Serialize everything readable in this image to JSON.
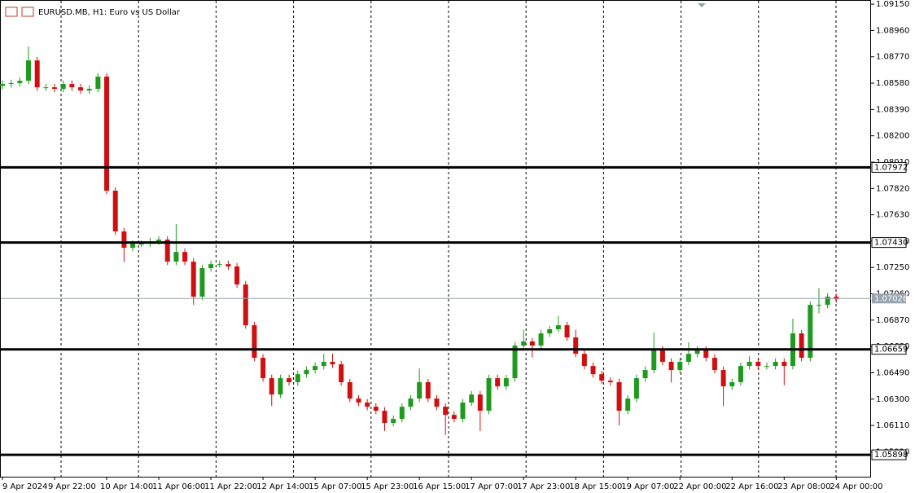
{
  "chart_data": {
    "type": "candlestick",
    "title": "EURUSD.MB, H1:  Euro vs US Dollar",
    "categories": [
      "9 Apr 2024",
      null,
      null,
      null,
      null,
      null,
      "9 Apr 22:00",
      null,
      null,
      null,
      null,
      null,
      "10 Apr 14:00",
      null,
      null,
      null,
      null,
      null,
      "11 Apr 06:00",
      null,
      null,
      null,
      null,
      null,
      "11 Apr 22:00",
      null,
      null,
      null,
      null,
      null,
      "12 Apr 14:00",
      null,
      null,
      null,
      null,
      null,
      "15 Apr 07:00",
      null,
      null,
      null,
      null,
      null,
      "15 Apr 23:00",
      null,
      null,
      null,
      null,
      null,
      "16 Apr 15:00",
      null,
      null,
      null,
      null,
      null,
      "17 Apr 07:00",
      null,
      null,
      null,
      null,
      null,
      "17 Apr 23:00",
      null,
      null,
      null,
      null,
      null,
      "18 Apr 15:00",
      null,
      null,
      null,
      null,
      null,
      "19 Apr 07:00",
      null,
      null,
      null,
      null,
      null,
      "22 Apr 00:00",
      null,
      null,
      null,
      null,
      null,
      "22 Apr 16:00",
      null,
      null,
      null,
      null,
      null,
      "23 Apr 08:00",
      null,
      null,
      null,
      null,
      null,
      "24 Apr 00:00"
    ],
    "open": [
      1.0856,
      1.08574,
      1.0858,
      1.08597,
      1.08744,
      1.0855,
      1.0855,
      1.08539,
      1.08574,
      1.0855,
      1.08527,
      1.08539,
      1.08627,
      1.07804,
      1.0751,
      1.07392,
      1.07421,
      1.07421,
      1.07439,
      1.07451,
      1.07292,
      1.07362,
      1.07292,
      1.07039,
      1.07245,
      1.07274,
      1.07274,
      1.07257,
      1.07127,
      1.06833,
      1.06598,
      1.06451,
      1.06333,
      1.06451,
      1.06422,
      1.0648,
      1.0651,
      1.06539,
      1.06569,
      1.06551,
      1.06422,
      1.06304,
      1.06275,
      1.06245,
      1.06216,
      1.06128,
      1.06157,
      1.06245,
      1.06304,
      1.06422,
      1.06304,
      1.06245,
      1.06186,
      1.06157,
      1.06275,
      1.06333,
      1.06216,
      1.06451,
      1.06392,
      1.06451,
      1.06686,
      1.06716,
      1.06686,
      1.06774,
      1.06804,
      1.06833,
      1.06745,
      1.06627,
      1.06539,
      1.0648,
      1.06433,
      1.06422,
      1.06216,
      1.06304,
      1.06451,
      1.0651,
      1.06657,
      1.06569,
      1.0651,
      1.06569,
      1.06627,
      1.06657,
      1.06598,
      1.0651,
      1.06392,
      1.06422,
      1.06539,
      1.06569,
      1.06539,
      1.06539,
      1.06569,
      1.06539,
      1.06774,
      1.06598,
      1.0698,
      1.0698,
      1.07039
    ],
    "high": [
      1.08599,
      1.08605,
      1.08622,
      1.08844,
      1.08769,
      1.08575,
      1.08575,
      1.08599,
      1.08599,
      1.08575,
      1.08564,
      1.08652,
      1.08652,
      1.07829,
      1.07535,
      1.07446,
      1.07446,
      1.07464,
      1.07476,
      1.07476,
      1.07563,
      1.07387,
      1.07317,
      1.0727,
      1.07299,
      1.07299,
      1.07299,
      1.07282,
      1.07152,
      1.06858,
      1.06623,
      1.06476,
      1.06476,
      1.06476,
      1.06505,
      1.06535,
      1.06564,
      1.06627,
      1.06627,
      1.06576,
      1.06447,
      1.06329,
      1.063,
      1.0627,
      1.06241,
      1.06182,
      1.0627,
      1.06329,
      1.0652,
      1.06447,
      1.06329,
      1.0627,
      1.06211,
      1.063,
      1.06358,
      1.06358,
      1.06476,
      1.06476,
      1.06476,
      1.06711,
      1.068,
      1.06741,
      1.06799,
      1.06829,
      1.069,
      1.06858,
      1.068,
      1.06652,
      1.06564,
      1.06505,
      1.06458,
      1.06447,
      1.06329,
      1.06476,
      1.06535,
      1.0678,
      1.06682,
      1.06594,
      1.06594,
      1.0671,
      1.06682,
      1.06682,
      1.06623,
      1.06535,
      1.06447,
      1.06564,
      1.0661,
      1.06594,
      1.06564,
      1.06594,
      1.06594,
      1.0688,
      1.06799,
      1.07005,
      1.071,
      1.07064,
      1.0706
    ],
    "low": [
      1.08535,
      1.08549,
      1.08555,
      1.08572,
      1.08525,
      1.08525,
      1.08514,
      1.08514,
      1.08525,
      1.08502,
      1.08502,
      1.08514,
      1.07779,
      1.07485,
      1.0729,
      1.07367,
      1.07396,
      1.07396,
      1.07414,
      1.07267,
      1.07267,
      1.07267,
      1.0698,
      1.07014,
      1.0722,
      1.07249,
      1.07232,
      1.07102,
      1.06808,
      1.06573,
      1.06426,
      1.0625,
      1.06308,
      1.06397,
      1.06397,
      1.06455,
      1.06485,
      1.06514,
      1.06526,
      1.06397,
      1.06279,
      1.0625,
      1.0622,
      1.06191,
      1.0607,
      1.06103,
      1.06132,
      1.0622,
      1.06279,
      1.06279,
      1.0622,
      1.0604,
      1.06132,
      1.06132,
      1.0625,
      1.0607,
      1.06191,
      1.06367,
      1.06367,
      1.06426,
      1.06661,
      1.066,
      1.06661,
      1.06749,
      1.06779,
      1.0672,
      1.06602,
      1.06514,
      1.06455,
      1.06408,
      1.06397,
      1.0611,
      1.06191,
      1.06279,
      1.06426,
      1.06485,
      1.06544,
      1.0642,
      1.06485,
      1.06544,
      1.06602,
      1.06573,
      1.06485,
      1.0625,
      1.06367,
      1.06397,
      1.06514,
      1.06514,
      1.06514,
      1.06514,
      1.064,
      1.06514,
      1.06573,
      1.06573,
      1.0692,
      1.06955,
      1.06996
    ],
    "close": [
      1.08574,
      1.0858,
      1.08597,
      1.08744,
      1.0855,
      1.0855,
      1.08539,
      1.08574,
      1.0855,
      1.08527,
      1.08539,
      1.08627,
      1.07804,
      1.0751,
      1.07392,
      1.07421,
      1.07421,
      1.07439,
      1.07451,
      1.07292,
      1.07362,
      1.07292,
      1.07039,
      1.07245,
      1.07274,
      1.07274,
      1.07257,
      1.07127,
      1.06833,
      1.06598,
      1.06451,
      1.06333,
      1.06451,
      1.06422,
      1.0648,
      1.0651,
      1.06539,
      1.06569,
      1.06551,
      1.06422,
      1.06304,
      1.06275,
      1.06245,
      1.06216,
      1.06128,
      1.06157,
      1.06245,
      1.06304,
      1.06422,
      1.06304,
      1.06245,
      1.06186,
      1.06157,
      1.06275,
      1.06333,
      1.06216,
      1.06451,
      1.06392,
      1.06451,
      1.06686,
      1.06716,
      1.06686,
      1.06774,
      1.06804,
      1.06833,
      1.06745,
      1.06627,
      1.06539,
      1.0648,
      1.06433,
      1.06422,
      1.06216,
      1.06304,
      1.06451,
      1.0651,
      1.06657,
      1.06569,
      1.0651,
      1.06569,
      1.06627,
      1.06657,
      1.06598,
      1.0651,
      1.06392,
      1.06422,
      1.06539,
      1.06569,
      1.06539,
      1.06539,
      1.06569,
      1.06539,
      1.06774,
      1.06598,
      1.0698,
      1.0698,
      1.07039,
      1.07021
    ],
    "up_color": "#1f9a1f",
    "down_color": "#d01010",
    "ylim": [
      1.0574,
      1.0918
    ],
    "yticks": [
      {
        "value": 1.0915,
        "label": "1.09150"
      },
      {
        "value": 1.0896,
        "label": "1.08960"
      },
      {
        "value": 1.0877,
        "label": "1.08770"
      },
      {
        "value": 1.0858,
        "label": "1.08580"
      },
      {
        "value": 1.0839,
        "label": "1.08390"
      },
      {
        "value": 1.082,
        "label": "1.08200"
      },
      {
        "value": 1.0801,
        "label": "1.08010"
      },
      {
        "value": 1.0782,
        "label": "1.07820"
      },
      {
        "value": 1.0763,
        "label": "1.07630"
      },
      {
        "value": 1.0744,
        "label": "1.07440"
      },
      {
        "value": 1.0725,
        "label": "1.07250"
      },
      {
        "value": 1.0706,
        "label": "1.07060"
      },
      {
        "value": 1.0687,
        "label": "1.06870"
      },
      {
        "value": 1.0668,
        "label": "1.06680"
      },
      {
        "value": 1.0649,
        "label": "1.06490"
      },
      {
        "value": 1.063,
        "label": "1.06300"
      },
      {
        "value": 1.0611,
        "label": "1.06110"
      },
      {
        "value": 1.0592,
        "label": "1.05920"
      }
    ],
    "levels": [
      1.07972,
      {
        "value": 1.0743,
        "label": "1.07430"
      },
      1.06659,
      1.05898
    ],
    "current_price": 1.07026
  }
}
